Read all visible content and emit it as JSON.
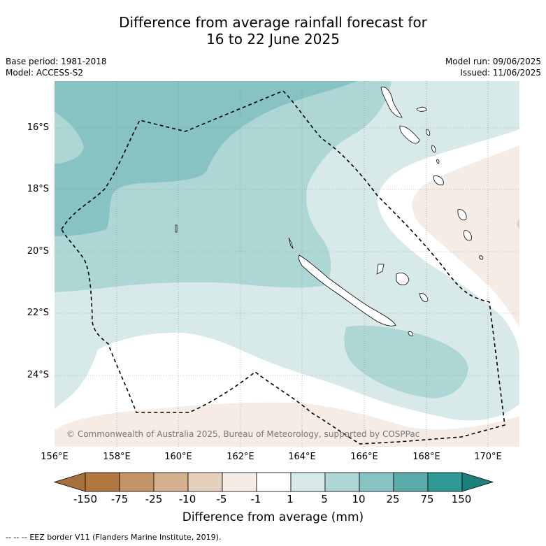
{
  "header": {
    "title_line1": "Difference from average rainfall forecast for",
    "title_line2": "16 to 22 June 2025",
    "base_period": "Base period: 1981-2018",
    "model": "Model: ACCESS-S2",
    "model_run": "Model run: 09/06/2025",
    "issued": "Issued: 11/06/2025"
  },
  "map": {
    "lat_labels": [
      "16°S",
      "18°S",
      "20°S",
      "22°S",
      "24°S"
    ],
    "lon_labels": [
      "156°E",
      "158°E",
      "160°E",
      "162°E",
      "164°E",
      "166°E",
      "168°E",
      "170°E"
    ],
    "copyright": "© Commonwealth of Australia 2025, Bureau of Meteorology, supported by COSPPac",
    "legend_layer": "EEZ border V11 (Flanders Marine Institute, 2019)."
  },
  "colorbar": {
    "title": "Difference from average (mm)",
    "tick_labels": [
      "-150",
      "-75",
      "-25",
      "-10",
      "-5",
      "-1",
      "1",
      "5",
      "10",
      "25",
      "75",
      "150"
    ],
    "colors": [
      "#a8703a",
      "#b2773e",
      "#c49366",
      "#d4b08f",
      "#e5cfbd",
      "#f5ece5",
      "#ffffff",
      "#d7eae9",
      "#aed6d5",
      "#86c3c2",
      "#5aacab",
      "#319995",
      "#1f7f7b"
    ]
  },
  "colors": {
    "border": "#000000",
    "gridline": "#888888"
  }
}
